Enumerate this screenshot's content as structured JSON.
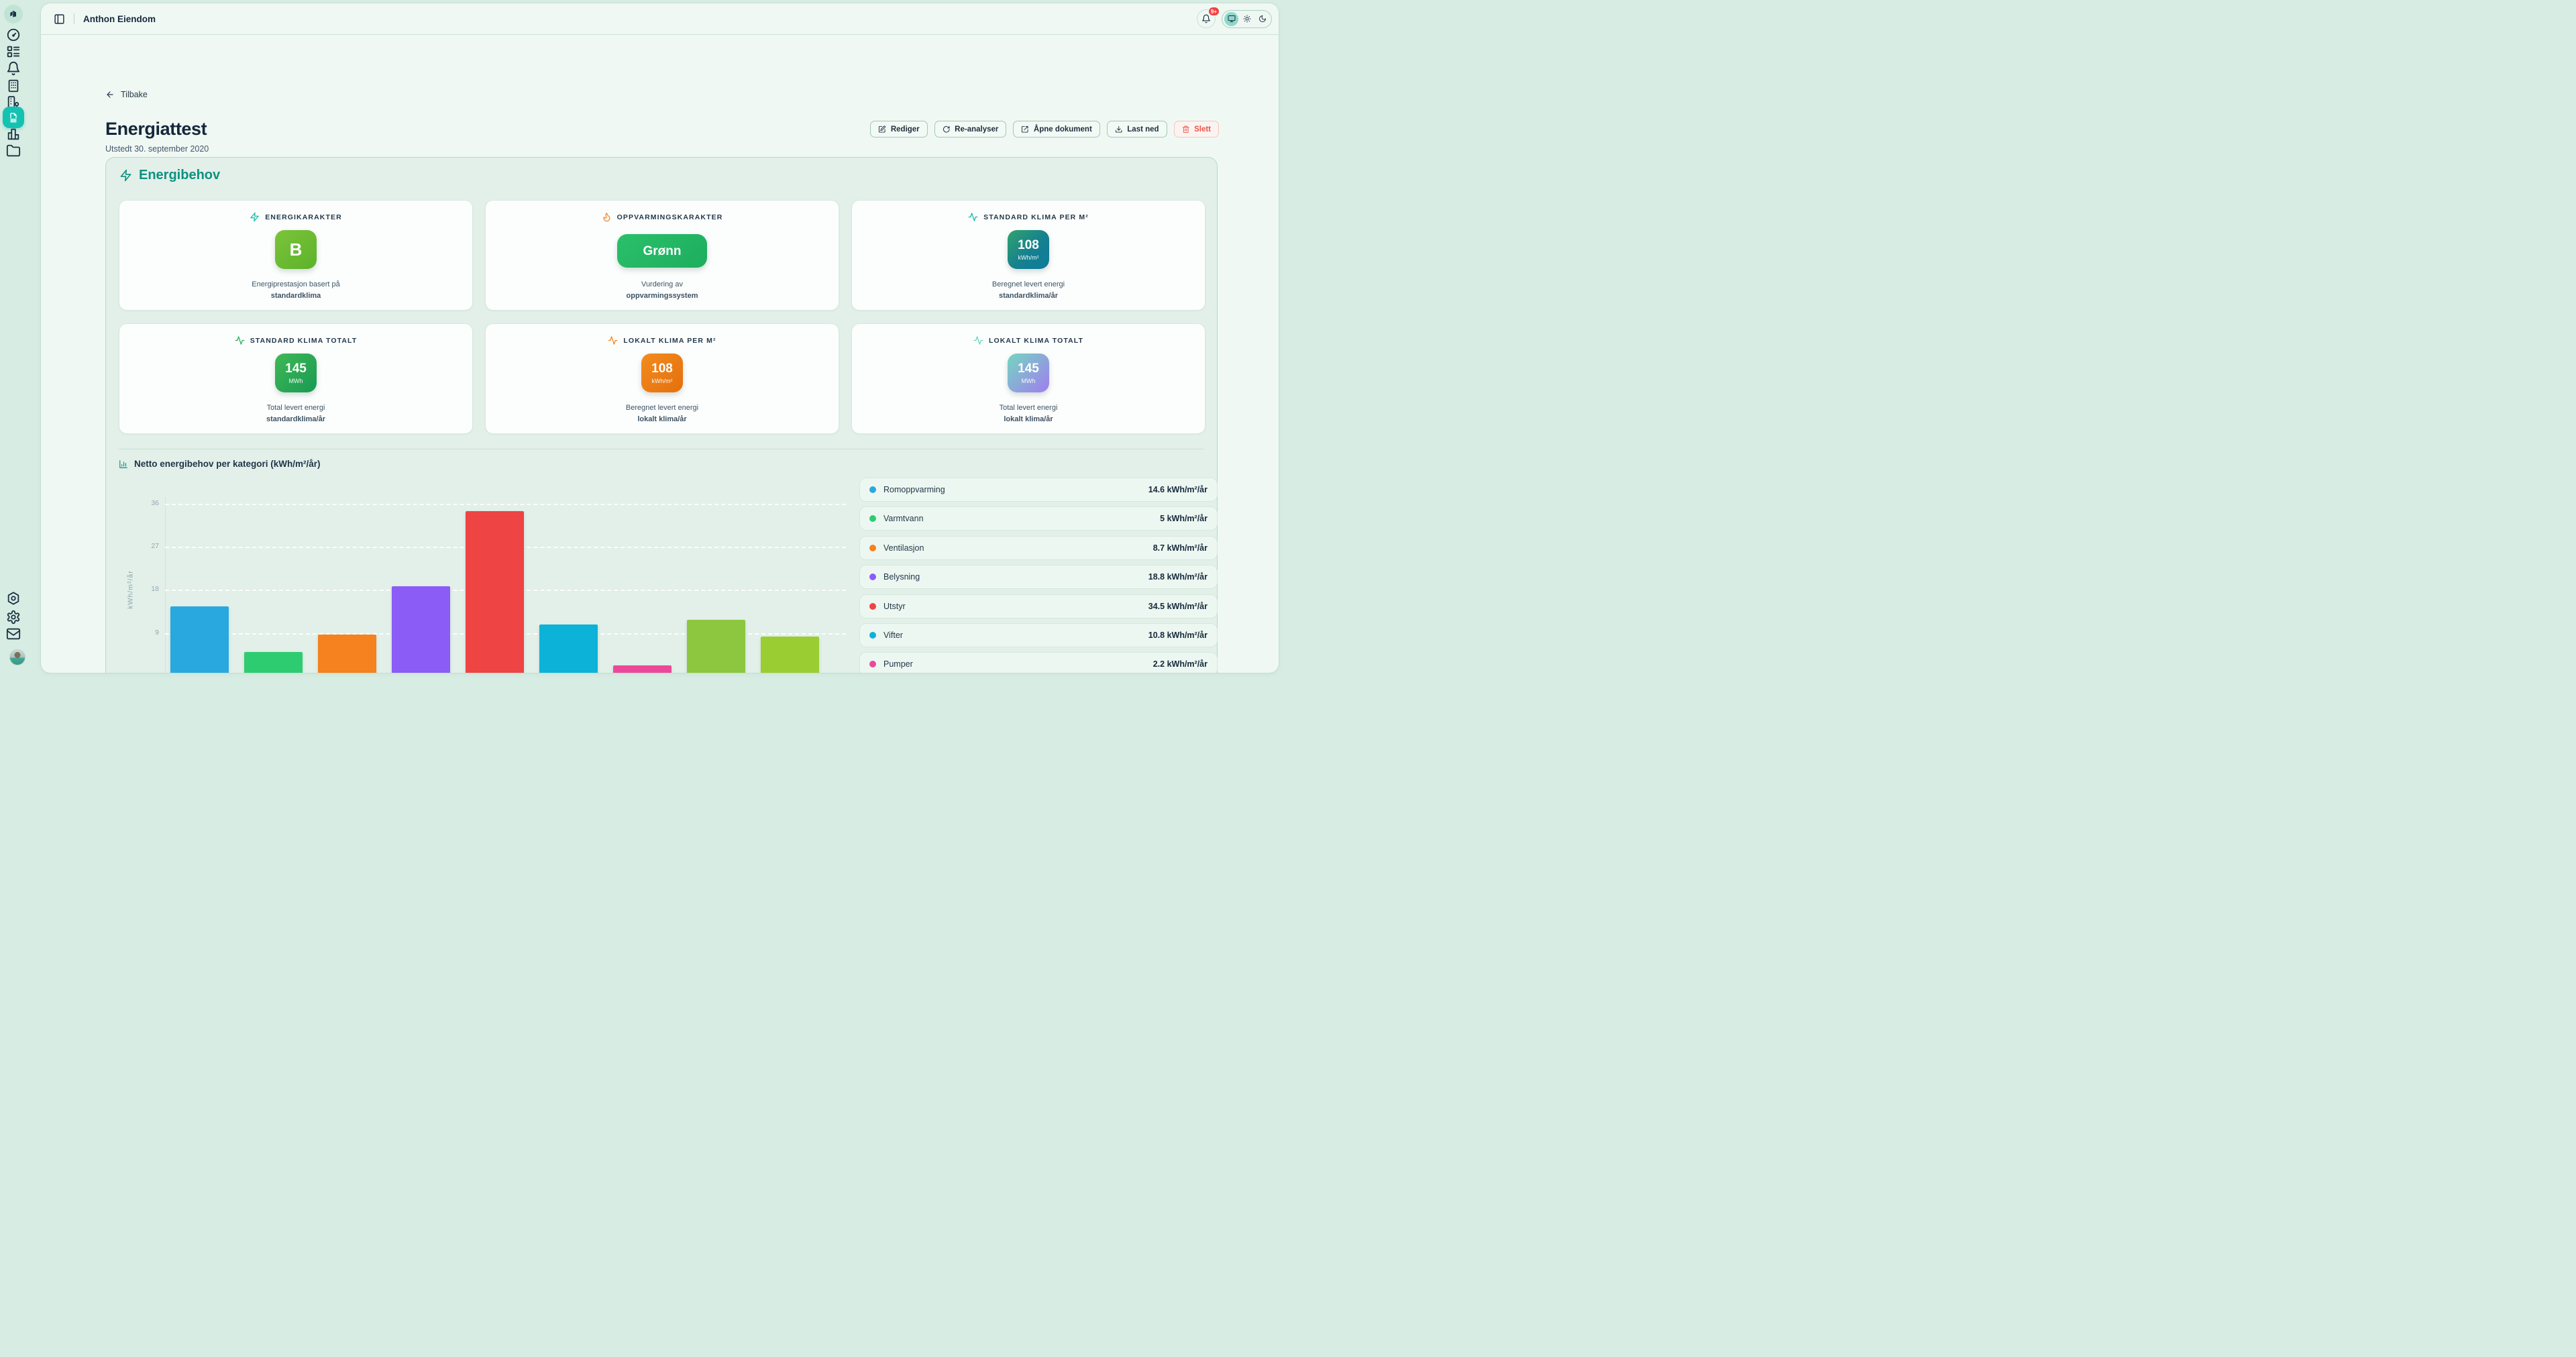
{
  "topbar": {
    "app_title": "Anthon Eiendom",
    "notification_badge": "9+"
  },
  "sidebar": {
    "icons": [
      {
        "name": "logo",
        "active": false
      },
      {
        "name": "gauge-dashboard",
        "active": false
      },
      {
        "name": "layout-list",
        "active": false
      },
      {
        "name": "bell-notifications",
        "active": false
      },
      {
        "name": "building",
        "active": false
      },
      {
        "name": "building-pin-properties",
        "active": false
      },
      {
        "name": "document-certificates",
        "active": true
      },
      {
        "name": "bar-chart-reports",
        "active": false
      },
      {
        "name": "folder-files",
        "active": false
      }
    ],
    "footer_icons": [
      "nut-hexagon",
      "settings-gear",
      "mail",
      "user-avatar"
    ]
  },
  "page": {
    "back_label": "Tilbake",
    "title": "Energiattest",
    "subtitle": "Utstedt 30. september 2020"
  },
  "actions": {
    "edit": "Rediger",
    "reanalyse": "Re-analyser",
    "open_document": "Åpne dokument",
    "download": "Last ned",
    "delete": "Slett"
  },
  "energibehov": {
    "section_title": "Energibehov",
    "cards": [
      {
        "label": "ENERGIKARAKTER",
        "icon": "zap",
        "value": "B",
        "unit": "",
        "caption1": "Energiprestasjon basert på",
        "caption2": "standardklima"
      },
      {
        "label": "OPPVARMINGSKARAKTER",
        "icon": "flame",
        "value": "Grønn",
        "unit": "",
        "caption1": "Vurdering av",
        "caption2": "oppvarmingssystem"
      },
      {
        "label": "STANDARD KLIMA PER M²",
        "icon": "activity",
        "value": "108",
        "unit": "kWh/m²",
        "caption1": "Beregnet levert energi",
        "caption2": "standardklima/år"
      },
      {
        "label": "STANDARD KLIMA TOTALT",
        "icon": "activity",
        "value": "145",
        "unit": "MWh",
        "caption1": "Total levert energi",
        "caption2": "standardklima/år"
      },
      {
        "label": "LOKALT KLIMA PER M²",
        "icon": "activity",
        "value": "108",
        "unit": "kWh/m²",
        "caption1": "Beregnet levert energi",
        "caption2": "lokalt klima/år"
      },
      {
        "label": "LOKALT KLIMA TOTALT",
        "icon": "activity",
        "value": "145",
        "unit": "MWh",
        "caption1": "Total levert energi",
        "caption2": "lokalt klima/år"
      }
    ],
    "legend": [
      {
        "label": "Romoppvarming",
        "value_text": "14.6 kWh/m²/år",
        "color": "#29a8e0"
      },
      {
        "label": "Varmtvann",
        "value_text": "5 kWh/m²/år",
        "color": "#2ecc71"
      },
      {
        "label": "Ventilasjon",
        "value_text": "8.7 kWh/m²/år",
        "color": "#f5821f"
      },
      {
        "label": "Belysning",
        "value_text": "18.8 kWh/m²/år",
        "color": "#8b5cf6"
      },
      {
        "label": "Utstyr",
        "value_text": "34.5 kWh/m²/år",
        "color": "#ee4444"
      },
      {
        "label": "Vifter",
        "value_text": "10.8 kWh/m²/år",
        "color": "#0db2d8"
      },
      {
        "label": "Pumper",
        "value_text": "2.2 kWh/m²/år",
        "color": "#ec4899"
      }
    ]
  },
  "chart_data": {
    "type": "bar",
    "title": "Netto energibehov per kategori (kWh/m²/år)",
    "ylabel": "kWh/m²/år",
    "ylim": [
      0,
      38
    ],
    "yticks": [
      9,
      18,
      27,
      36
    ],
    "grid": true,
    "legend_position": "right",
    "categories": [
      "Romoppvarming",
      "Varmtvann",
      "Ventilasjon",
      "Belysning",
      "Utstyr",
      "Vifter",
      "Pumper",
      "",
      ""
    ],
    "values": [
      14.6,
      5,
      8.7,
      18.8,
      34.5,
      10.8,
      2.2,
      11.8,
      8.3
    ],
    "colors": [
      "#29a8e0",
      "#2ecc71",
      "#f5821f",
      "#8b5cf6",
      "#ee4444",
      "#0db2d8",
      "#ec4899",
      "#8dc63f",
      "#9acd32"
    ]
  }
}
